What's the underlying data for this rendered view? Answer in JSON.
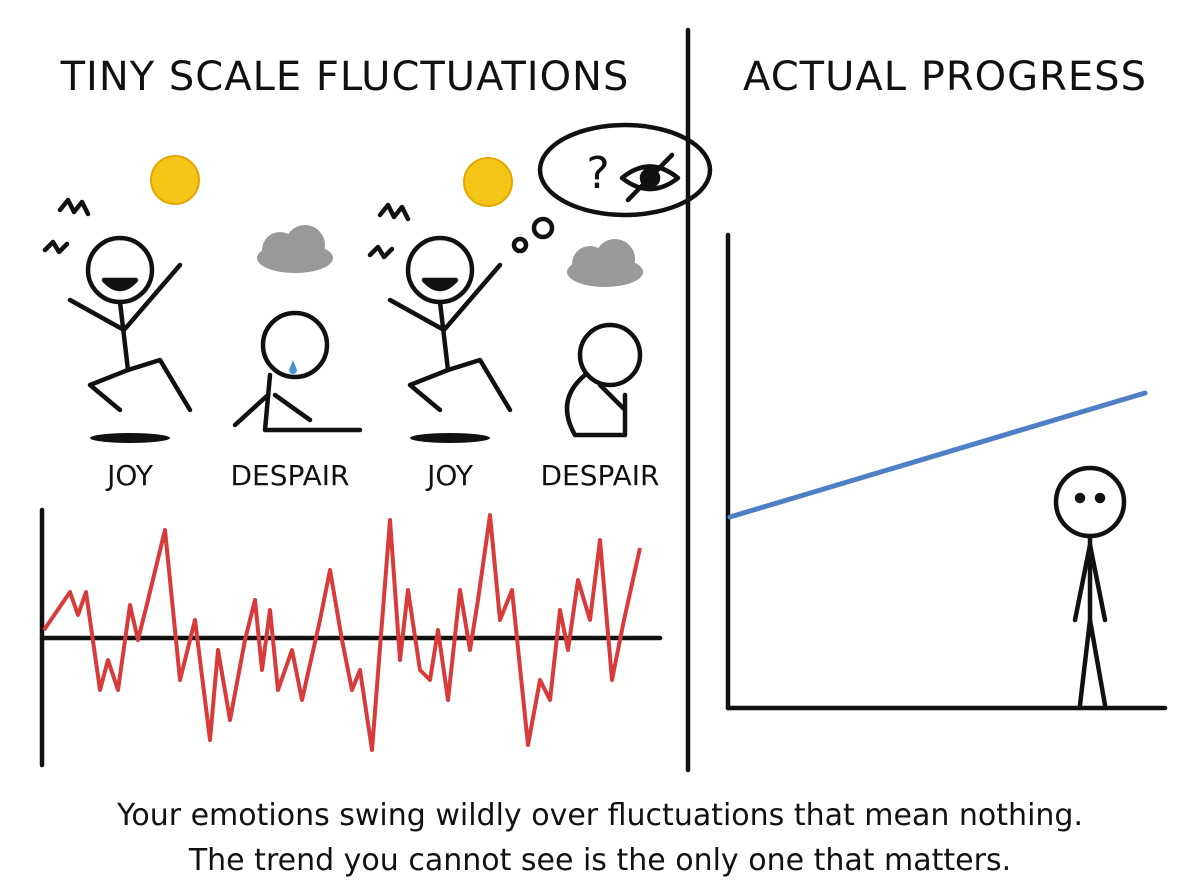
{
  "panels": [
    {
      "title": "TINY SCALE FLUCTUATIONS",
      "labels": [
        "JOY",
        "DESPAIR",
        "JOY",
        "DESPAIR"
      ]
    },
    {
      "title": "ACTUAL PROGRESS"
    }
  ],
  "thought_bubble": {
    "symbol": "?"
  },
  "caption": [
    "Your emotions swing wildly over fluctuations that mean nothing.",
    "The trend you cannot see is the only one that matters."
  ]
}
